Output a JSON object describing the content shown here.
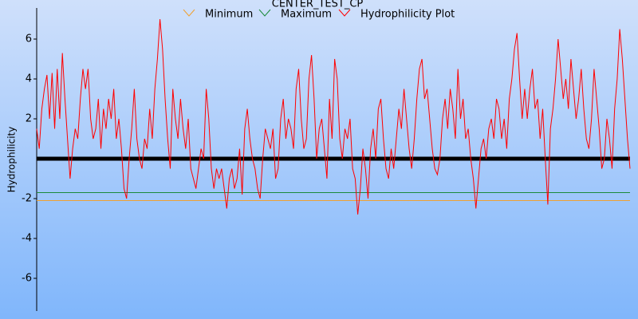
{
  "chart_data": {
    "type": "line",
    "title": "CENTER_TEST_CP",
    "y_label": "Hydrophilicity",
    "ylim": [
      -7.6,
      7.6
    ],
    "yticks": [
      -6,
      -4,
      -2,
      2,
      4,
      6
    ],
    "series": [
      {
        "name": "Minimum",
        "color": "#f0a030",
        "value": -2.1
      },
      {
        "name": "Maximum",
        "color": "#1a8a3a",
        "value": -1.7
      },
      {
        "name": "Hydrophilicity Plot",
        "color": "#ff0000",
        "values": [
          1.5,
          0.5,
          2.5,
          3.5,
          4.2,
          2.0,
          4.3,
          1.5,
          4.5,
          2.0,
          5.3,
          3.0,
          1.0,
          -1.0,
          0.5,
          1.5,
          1.0,
          3.0,
          4.5,
          3.5,
          4.5,
          2.0,
          1.0,
          1.5,
          3.0,
          0.5,
          2.5,
          1.5,
          3.0,
          2.0,
          3.5,
          1.0,
          2.0,
          0.5,
          -1.5,
          -2.0,
          0.0,
          1.5,
          3.5,
          1.0,
          0.0,
          -0.5,
          1.0,
          0.5,
          2.5,
          1.0,
          3.5,
          5.0,
          7.0,
          5.5,
          3.0,
          1.0,
          -0.5,
          3.5,
          2.0,
          1.0,
          3.0,
          1.5,
          0.5,
          2.0,
          -0.5,
          -1.0,
          -1.5,
          -0.5,
          0.5,
          0.0,
          3.5,
          2.0,
          -0.5,
          -1.5,
          -0.5,
          -1.0,
          -0.5,
          -1.5,
          -2.5,
          -1.0,
          -0.5,
          -1.5,
          -1.0,
          0.5,
          -1.8,
          1.5,
          2.5,
          1.0,
          0.0,
          -0.5,
          -1.5,
          -2.0,
          0.0,
          1.5,
          1.0,
          0.5,
          1.5,
          -1.0,
          -0.5,
          2.0,
          3.0,
          1.0,
          2.0,
          1.5,
          0.5,
          3.5,
          4.5,
          2.0,
          0.5,
          1.0,
          4.0,
          5.2,
          3.0,
          0.0,
          1.5,
          2.0,
          0.5,
          -1.0,
          3.0,
          1.0,
          5.0,
          4.0,
          1.0,
          0.0,
          1.5,
          1.0,
          2.0,
          -0.5,
          -1.0,
          -2.8,
          -1.5,
          0.5,
          -0.5,
          -2.0,
          0.5,
          1.5,
          0.0,
          2.5,
          3.0,
          1.0,
          -0.5,
          -1.0,
          0.5,
          -0.5,
          1.0,
          2.5,
          1.5,
          3.5,
          2.0,
          0.5,
          -0.5,
          1.0,
          3.0,
          4.5,
          5.0,
          3.0,
          3.5,
          2.0,
          0.5,
          -0.5,
          -0.8,
          0.0,
          2.0,
          3.0,
          1.5,
          3.5,
          2.5,
          1.0,
          4.5,
          2.0,
          3.0,
          1.0,
          1.5,
          0.0,
          -1.0,
          -2.5,
          -1.0,
          0.5,
          1.0,
          0.0,
          1.5,
          2.0,
          1.0,
          3.0,
          2.5,
          1.0,
          2.0,
          0.5,
          3.0,
          4.0,
          5.5,
          6.3,
          4.0,
          2.0,
          3.5,
          2.0,
          3.5,
          4.5,
          2.5,
          3.0,
          1.0,
          2.5,
          0.0,
          -2.3,
          1.5,
          2.5,
          4.0,
          6.0,
          4.5,
          3.0,
          4.0,
          2.5,
          5.0,
          3.5,
          2.0,
          3.0,
          4.5,
          2.5,
          1.0,
          0.5,
          2.0,
          4.5,
          3.0,
          1.5,
          -0.5,
          0.0,
          2.0,
          1.0,
          -0.5,
          2.5,
          4.0,
          6.5,
          5.0,
          3.0,
          1.0,
          -0.5
        ]
      }
    ]
  }
}
